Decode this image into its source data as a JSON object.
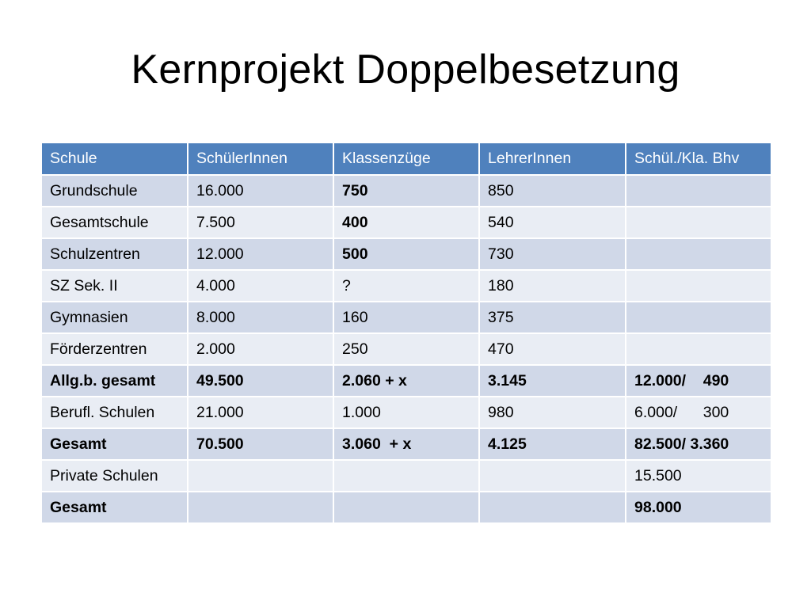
{
  "slide": {
    "title": "Kernprojekt Doppelbesetzung"
  },
  "table": {
    "headers": [
      "Schule",
      "SchülerInnen",
      "Klassenzüge",
      "LehrerInnen",
      "Schül./Kla. Bhv"
    ],
    "rows": [
      [
        "Grundschule",
        "16.000",
        "750",
        "850",
        ""
      ],
      [
        "Gesamtschule",
        "7.500",
        "400",
        "540",
        ""
      ],
      [
        "Schulzentren",
        "12.000",
        "500",
        "730",
        ""
      ],
      [
        "SZ Sek. II",
        "4.000",
        "?",
        "180",
        ""
      ],
      [
        "Gymnasien",
        "8.000",
        "160",
        "375",
        ""
      ],
      [
        "Förderzentren",
        "2.000",
        "250",
        "470",
        ""
      ],
      [
        "Allg.b. gesamt",
        "49.500",
        "2.060 + x",
        "3.145",
        "12.000/    490"
      ],
      [
        "Berufl. Schulen",
        "21.000",
        "1.000",
        "980",
        "6.000/      300"
      ],
      [
        "Gesamt",
        "70.500",
        "3.060  + x",
        "4.125",
        "82.500/ 3.360"
      ],
      [
        "Private Schulen",
        "",
        "",
        "",
        "15.500"
      ],
      [
        "Gesamt",
        "",
        "",
        "",
        "98.000"
      ]
    ]
  },
  "colors": {
    "header_bg": "#4f81bd",
    "row_band_dark": "#d0d8e8",
    "row_band_light": "#e9edf4"
  }
}
